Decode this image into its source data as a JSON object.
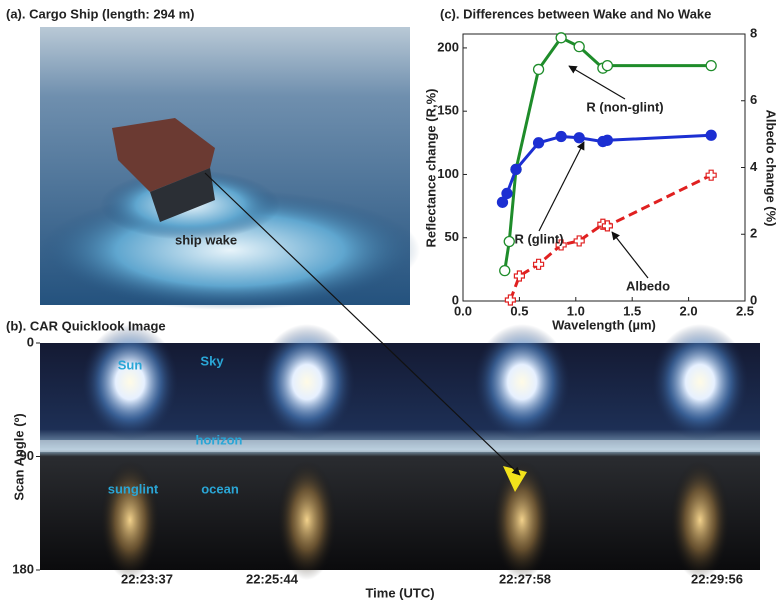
{
  "panels": {
    "a": {
      "title": "(a). Cargo Ship (length: 294 m)",
      "label": "ship wake"
    },
    "b": {
      "title": "(b). CAR Quicklook Image",
      "ylabel": "Scan Angle (º)",
      "xlabel": "Time (UTC)",
      "ylim": [
        0,
        180
      ],
      "yticks": [
        0,
        90,
        180
      ],
      "times": [
        "22:23:37",
        "22:25:44",
        "22:27:58",
        "22:29:56"
      ],
      "labels": [
        "Sun",
        "Sky",
        "horizon",
        "sunglint",
        "ocean"
      ]
    }
  },
  "chart_data": {
    "type": "line",
    "title": "(c). Differences between Wake and No Wake",
    "xlabel": "Wavelength (µm)",
    "ylabel": "Reflectance change (R,%)",
    "y2label": "Albedo change  (%)",
    "xlim": [
      0,
      2.5
    ],
    "xticks": [
      {
        "value": 0,
        "label": "0.0"
      },
      {
        "value": 0.5,
        "label": "0.5"
      },
      {
        "value": 1,
        "label": "1.0"
      },
      {
        "value": 1.5,
        "label": "1.5"
      },
      {
        "value": 2,
        "label": "2.0"
      },
      {
        "value": 2.5,
        "label": "2.5"
      }
    ],
    "ylim": [
      0,
      211
    ],
    "yticks": [
      0,
      50,
      100,
      150,
      200
    ],
    "y2lim": [
      0,
      8
    ],
    "y2ticks": [
      0,
      2,
      4,
      6,
      8
    ],
    "series": [
      {
        "name": "R (non-glint)",
        "color": "#1e8c2a",
        "marker": "open-circle",
        "dash": false,
        "x": [
          0.37,
          0.41,
          0.47,
          0.67,
          0.87,
          1.03,
          1.24,
          1.28,
          2.2
        ],
        "values": [
          24,
          47,
          104,
          183,
          208,
          201,
          184,
          186,
          186
        ]
      },
      {
        "name": "R (glint)",
        "color": "#1c2fd2",
        "marker": "filled-circle",
        "dash": false,
        "x": [
          0.35,
          0.39,
          0.47,
          0.67,
          0.87,
          1.03,
          1.24,
          1.28,
          2.2
        ],
        "values": [
          78,
          85,
          104,
          125,
          130,
          129,
          126,
          127,
          131
        ]
      },
      {
        "name": "Albedo",
        "color": "#e02020",
        "marker": "open-cross",
        "dash": true,
        "axis": "y2",
        "x": [
          0.42,
          0.5,
          0.67,
          0.87,
          1.03,
          1.24,
          1.28,
          2.2
        ],
        "values": [
          0.03,
          0.75,
          1.1,
          1.68,
          1.8,
          2.3,
          2.25,
          3.77
        ]
      }
    ]
  }
}
